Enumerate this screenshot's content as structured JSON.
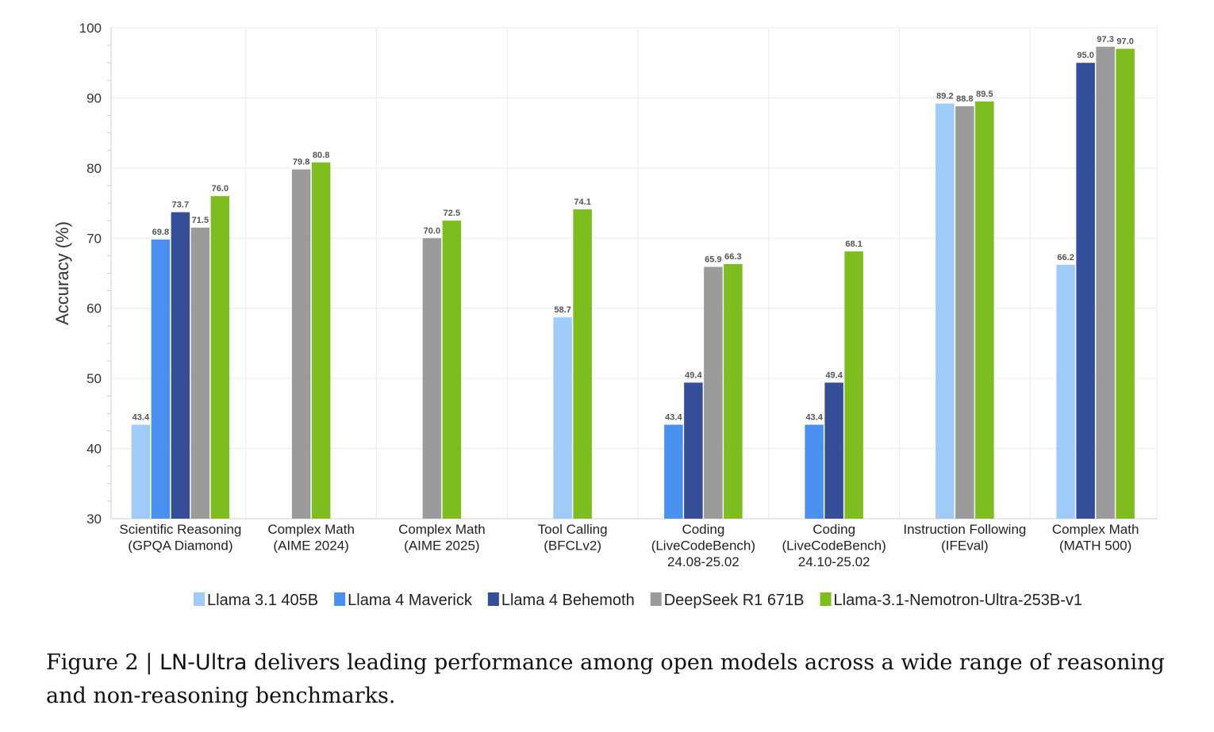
{
  "chart_data": {
    "type": "bar",
    "ylabel": "Accuracy (%)",
    "ylim": [
      30,
      100
    ],
    "yticks": [
      30,
      40,
      50,
      60,
      70,
      80,
      90,
      100
    ],
    "grid": true,
    "legend_position": "bottom",
    "categories": [
      [
        "Scientific Reasoning",
        "(GPQA Diamond)"
      ],
      [
        "Complex Math",
        "(AIME 2024)"
      ],
      [
        "Complex Math",
        "(AIME 2025)"
      ],
      [
        "Tool Calling",
        "(BFCLv2)"
      ],
      [
        "Coding",
        "(LiveCodeBench)",
        "24.08-25.02"
      ],
      [
        "Coding",
        "(LiveCodeBench)",
        "24.10-25.02"
      ],
      [
        "Instruction Following",
        "(IFEval)"
      ],
      [
        "Complex Math",
        "(MATH 500)"
      ]
    ],
    "series": [
      {
        "name": "Llama 3.1 405B",
        "color": "#9ecbf7",
        "values": [
          43.4,
          null,
          null,
          58.7,
          null,
          null,
          89.2,
          66.2
        ]
      },
      {
        "name": "Llama 4 Maverick",
        "color": "#4a90f0",
        "values": [
          69.8,
          null,
          null,
          null,
          43.4,
          43.4,
          null,
          null
        ]
      },
      {
        "name": "Llama 4 Behemoth",
        "color": "#344e99",
        "values": [
          73.7,
          null,
          null,
          null,
          49.4,
          49.4,
          null,
          95.0
        ]
      },
      {
        "name": "DeepSeek R1 671B",
        "color": "#9b9b9b",
        "values": [
          71.5,
          79.8,
          70.0,
          null,
          65.9,
          null,
          88.8,
          97.3
        ]
      },
      {
        "name": "Llama-3.1-Nemotron-Ultra-253B-v1",
        "color": "#7dbd1e",
        "values": [
          76.0,
          80.8,
          72.5,
          74.1,
          66.3,
          68.1,
          89.5,
          97.0
        ]
      }
    ]
  },
  "caption": {
    "prefix": "Figure 2 | ",
    "model": "LN-Ultra",
    "text": " delivers leading performance among open models across a wide range of reasoning and non-reasoning benchmarks."
  }
}
